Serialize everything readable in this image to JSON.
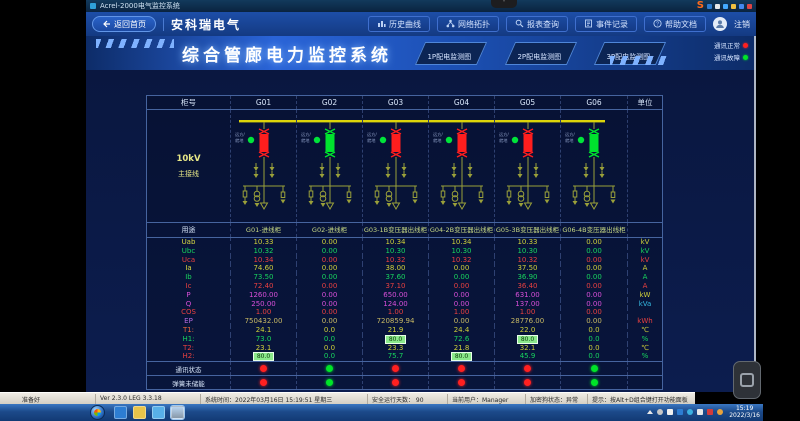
{
  "window": {
    "title": "Acrel-2000电气监控系统"
  },
  "remote_toolbar": {
    "logo": "S",
    "icon_colors": [
      "#2d7dd2",
      "#e8e8e8",
      "#44aaff",
      "#f0c040",
      "#4488ee",
      "#dd4444"
    ]
  },
  "header": {
    "home_label": "返回首页",
    "brand": "安科瑞电气",
    "nav": [
      {
        "icon": "chart-icon",
        "label": "历史曲线"
      },
      {
        "icon": "topology-icon",
        "label": "网络拓扑"
      },
      {
        "icon": "search-icon",
        "label": "报表查询"
      },
      {
        "icon": "doc-icon",
        "label": "事件记录"
      },
      {
        "icon": "help-icon",
        "label": "帮助文档"
      }
    ],
    "logout_label": "注销"
  },
  "banner": {
    "title": "综合管廊电力监控系统",
    "tabs": [
      "1P配电监测图",
      "2P配电监测图",
      "3P配电监测图"
    ],
    "legend": [
      {
        "label": "通讯正常",
        "color": "#ff2020"
      },
      {
        "label": "通讯故障",
        "color": "#00e428"
      }
    ]
  },
  "table": {
    "corner": "柜号",
    "unit_header": "单位",
    "columns": [
      "G01",
      "G02",
      "G03",
      "G04",
      "G05",
      "G06"
    ],
    "bus_label": [
      "10kV",
      "主接线"
    ],
    "breaker_note": "远方/就地",
    "breakers": [
      "#ff1e1e",
      "#00e32e",
      "#ff1e1e",
      "#ff1e1e",
      "#ff1e1e",
      "#00e32e"
    ],
    "purpose_label": "用途",
    "purposes": [
      "G01-进线柜",
      "G02-进线柜",
      "G03-1B变压器出线柜",
      "G04-2B变压器出线柜",
      "G05-3B变压器出线柜",
      "G06-4B变压器出线柜"
    ],
    "rows": [
      {
        "label": "Uab",
        "c": "#d9d943",
        "vc": "#cfcf3a",
        "unit": "kV",
        "uc": "#cfcf3a",
        "values": [
          "10.33",
          "0.00",
          "10.34",
          "10.34",
          "10.33",
          "0.00"
        ],
        "hl": [
          0,
          0,
          0,
          0,
          0,
          0
        ]
      },
      {
        "label": "Ubc",
        "c": "#18d45e",
        "vc": "#18d45e",
        "unit": "kV",
        "uc": "#18d45e",
        "values": [
          "10.32",
          "0.00",
          "10.30",
          "10.30",
          "10.30",
          "0.00"
        ],
        "hl": [
          0,
          0,
          0,
          0,
          0,
          0
        ]
      },
      {
        "label": "Uca",
        "c": "#e84040",
        "vc": "#e84040",
        "unit": "kV",
        "uc": "#e84040",
        "values": [
          "10.34",
          "0.00",
          "10.32",
          "10.32",
          "10.32",
          "0.00"
        ],
        "hl": [
          0,
          0,
          0,
          0,
          0,
          0
        ]
      },
      {
        "label": "Ia",
        "c": "#d9d943",
        "vc": "#cfcf3a",
        "unit": "A",
        "uc": "#cfcf3a",
        "values": [
          "74.60",
          "0.00",
          "38.00",
          "0.00",
          "37.50",
          "0.00"
        ],
        "hl": [
          0,
          0,
          0,
          0,
          0,
          0
        ]
      },
      {
        "label": "Ib",
        "c": "#18d45e",
        "vc": "#18d45e",
        "unit": "A",
        "uc": "#18d45e",
        "values": [
          "73.50",
          "0.00",
          "37.60",
          "0.00",
          "36.90",
          "0.00"
        ],
        "hl": [
          0,
          0,
          0,
          0,
          0,
          0
        ]
      },
      {
        "label": "Ic",
        "c": "#e84040",
        "vc": "#e84040",
        "unit": "A",
        "uc": "#e84040",
        "values": [
          "72.40",
          "0.00",
          "37.10",
          "0.00",
          "36.40",
          "0.00"
        ],
        "hl": [
          0,
          0,
          0,
          0,
          0,
          0
        ]
      },
      {
        "label": "P",
        "c": "#d84fd8",
        "vc": "#d84fd8",
        "unit": "kW",
        "uc": "#cfcf3a",
        "values": [
          "1260.00",
          "0.00",
          "650.00",
          "0.00",
          "631.00",
          "0.00"
        ],
        "hl": [
          0,
          0,
          0,
          0,
          0,
          0
        ]
      },
      {
        "label": "Q",
        "c": "#d84fd8",
        "vc": "#d84fd8",
        "unit": "kVa",
        "uc": "#35b8e0",
        "values": [
          "250.00",
          "0.00",
          "124.00",
          "0.00",
          "137.00",
          "0.00"
        ],
        "hl": [
          0,
          0,
          0,
          0,
          0,
          0
        ]
      },
      {
        "label": "COS",
        "c": "#e84040",
        "vc": "#e84040",
        "unit": "",
        "uc": "#e84040",
        "values": [
          "1.00",
          "0.00",
          "1.00",
          "1.00",
          "1.00",
          "0.00"
        ],
        "hl": [
          0,
          0,
          0,
          0,
          0,
          0
        ]
      },
      {
        "label": "EP",
        "c": "#b56ae0",
        "vc": "#c9b964",
        "unit": "kWh",
        "uc": "#e84040",
        "values": [
          "750432.00",
          "0.00",
          "720859.94",
          "0.00",
          "28776.00",
          "0.00"
        ],
        "hl": [
          0,
          0,
          0,
          0,
          0,
          0
        ]
      },
      {
        "label": "T1:",
        "c": "#e8653a",
        "vc": "#cfcf3a",
        "unit": "℃",
        "uc": "#cfcf3a",
        "values": [
          "24.1",
          "0.0",
          "21.9",
          "24.4",
          "22.0",
          "0.0"
        ],
        "hl": [
          0,
          0,
          0,
          0,
          0,
          0
        ]
      },
      {
        "label": "H1:",
        "c": "#18d45e",
        "vc": "#18d45e",
        "unit": "%",
        "uc": "#18d45e",
        "values": [
          "73.0",
          "0.0",
          "80.0",
          "72.6",
          "80.0",
          "0.0"
        ],
        "hl": [
          0,
          0,
          1,
          0,
          1,
          0
        ]
      },
      {
        "label": "T2:",
        "c": "#e84040",
        "vc": "#cfcf3a",
        "unit": "℃",
        "uc": "#cfcf3a",
        "values": [
          "23.1",
          "0.0",
          "23.3",
          "21.8",
          "32.1",
          "0.0"
        ],
        "hl": [
          0,
          0,
          0,
          0,
          0,
          0
        ]
      },
      {
        "label": "H2:",
        "c": "#e84040",
        "vc": "#18d45e",
        "unit": "%",
        "uc": "#18d45e",
        "values": [
          "80.0",
          "0.0",
          "75.7",
          "80.0",
          "45.9",
          "0.0"
        ],
        "hl": [
          1,
          0,
          0,
          1,
          0,
          0
        ]
      }
    ],
    "status_rows": [
      {
        "label": "通讯状态",
        "dots": [
          "#ff2020",
          "#00e428",
          "#ff2020",
          "#ff2020",
          "#ff2020",
          "#00e428"
        ]
      },
      {
        "label": "弹簧未储能",
        "dots": [
          "#ff2020",
          "#00e428",
          "#ff2020",
          "#ff2020",
          "#ff2020",
          "#00e428"
        ]
      }
    ]
  },
  "statusbar": {
    "items": [
      "准备好",
      "Ver 2.3.0 LEG 3.3.18",
      "系统时间：2022年03月16日  15:19:51  星期三",
      "安全运行天数： 90",
      "当前用户：Manager",
      "加密狗状态：异常",
      "提示：按Alt+D组合键打开功能面板"
    ]
  },
  "taskbar": {
    "clock_time": "15:19",
    "clock_date": "2022/3/16",
    "app_icon_colors": [
      "#2d7dd2",
      "#e8c44a",
      "#58b0e8",
      "#8898a8"
    ],
    "tray_icon_colors": [
      "#c8c8c8",
      "#f0f0f0",
      "#2d7dd2",
      "#3bb0e0",
      "#e8e8e8",
      "#d23b3b",
      "#e8a33b"
    ]
  }
}
